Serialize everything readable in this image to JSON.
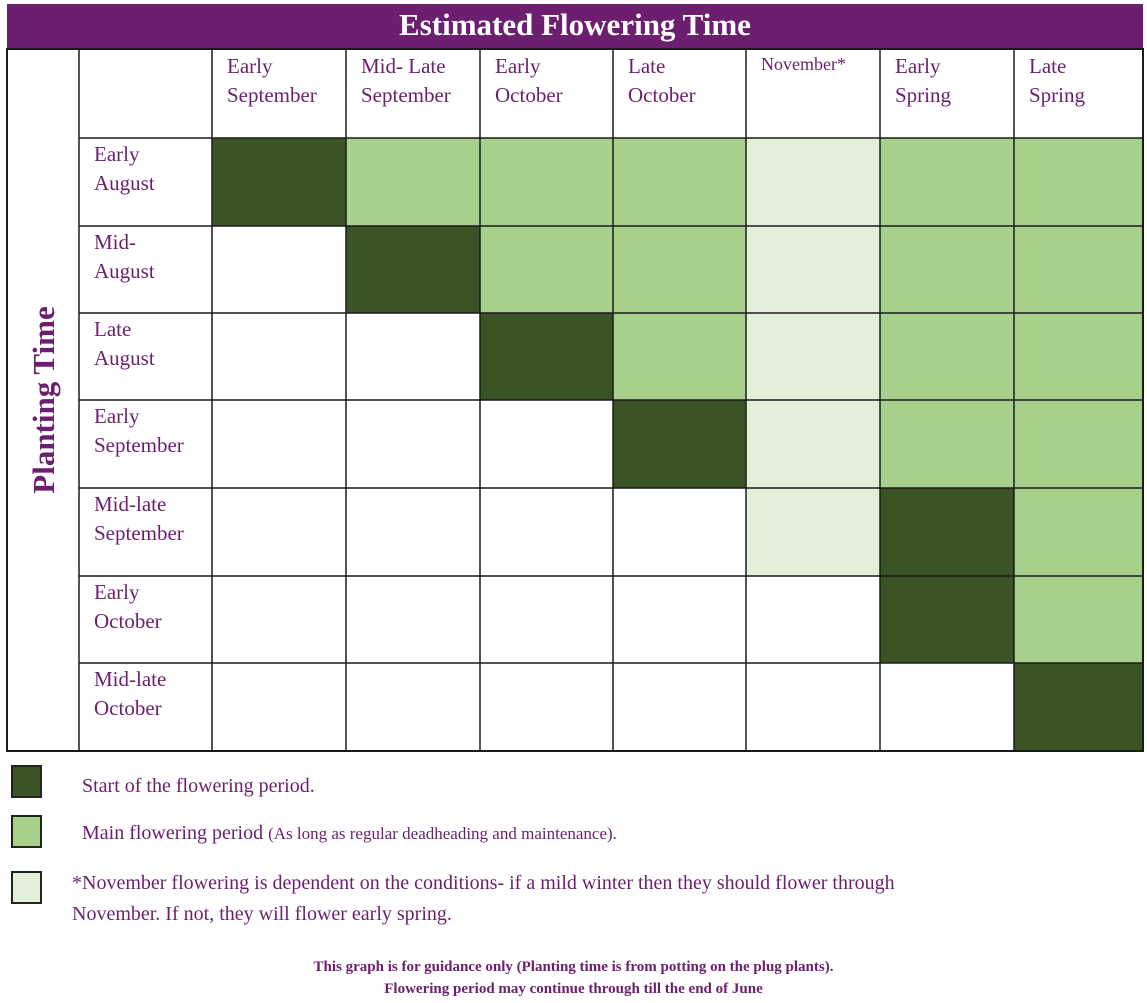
{
  "chart_data": {
    "type": "table",
    "title": "Estimated Flowering Time",
    "ylabel": "Planting Time",
    "columns": [
      [
        "Early",
        "September"
      ],
      [
        "Mid- Late",
        "September"
      ],
      [
        "Early",
        "October"
      ],
      [
        "Late",
        "October"
      ],
      [
        "November*"
      ],
      [
        "Early",
        "Spring"
      ],
      [
        "Late",
        "Spring"
      ]
    ],
    "rows": [
      [
        "Early",
        "August"
      ],
      [
        "Mid-",
        "August"
      ],
      [
        "Late",
        "August"
      ],
      [
        "Early",
        "September"
      ],
      [
        "Mid-late",
        "September"
      ],
      [
        "Early",
        "October"
      ],
      [
        "Mid-late",
        "October"
      ]
    ],
    "cells": [
      [
        "start",
        "main",
        "main",
        "main",
        "november",
        "main",
        "main"
      ],
      [
        "none",
        "start",
        "main",
        "main",
        "november",
        "main",
        "main"
      ],
      [
        "none",
        "none",
        "start",
        "main",
        "november",
        "main",
        "main"
      ],
      [
        "none",
        "none",
        "none",
        "start",
        "november",
        "main",
        "main"
      ],
      [
        "none",
        "none",
        "none",
        "none",
        "november",
        "start",
        "main"
      ],
      [
        "none",
        "none",
        "none",
        "none",
        "none",
        "start",
        "main"
      ],
      [
        "none",
        "none",
        "none",
        "none",
        "none",
        "none",
        "start"
      ]
    ],
    "colors": {
      "start": "#3b5426",
      "main": "#a8d08d",
      "november": "#e2efd9",
      "none": "#ffffff",
      "header": "#6b1f6e"
    }
  },
  "legend": {
    "start": "Start of the flowering period.",
    "main": "Main flowering period",
    "main_aside": "(As long as regular deadheading and maintenance).",
    "november_line1": "*November flowering is dependent on the conditions- if a mild winter then they should flower through",
    "november_line2": "November. If not, they will flower early spring."
  },
  "footnote": {
    "line1": "This graph is for guidance only (Planting time is from potting on the plug plants).",
    "line2": "Flowering period may continue through till the end of June"
  }
}
